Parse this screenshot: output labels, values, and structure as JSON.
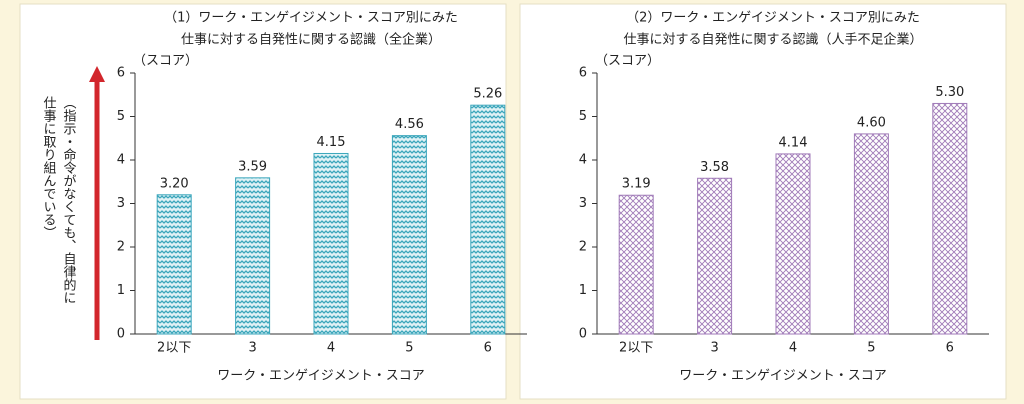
{
  "chart_data": [
    {
      "type": "bar",
      "title": [
        "（1）ワーク・エンゲイジメント・スコア別にみた",
        "仕事に対する自発性に関する認識（全企業）"
      ],
      "y_unit": "（スコア）",
      "y_axis_label": [
        "（指示・命令がなくても、自律的に",
        "仕事に取り組んでいる）"
      ],
      "x_label": "ワーク・エンゲイジメント・スコア",
      "categories": [
        "2以下",
        "3",
        "4",
        "5",
        "6"
      ],
      "values": [
        3.2,
        3.59,
        4.15,
        4.56,
        5.26
      ],
      "value_labels": [
        "3.20",
        "3.59",
        "4.15",
        "4.56",
        "5.26"
      ],
      "color": "#3aa6bb",
      "pattern": "wave",
      "ylim": [
        0,
        6
      ],
      "yticks": [
        0,
        1,
        2,
        3,
        4,
        5,
        6
      ]
    },
    {
      "type": "bar",
      "title": [
        "（2）ワーク・エンゲイジメント・スコア別にみた",
        "仕事に対する自発性に関する認識（人手不足企業）"
      ],
      "y_unit": "（スコア）",
      "x_label": "ワーク・エンゲイジメント・スコア",
      "categories": [
        "2以下",
        "3",
        "4",
        "5",
        "6"
      ],
      "values": [
        3.19,
        3.58,
        4.14,
        4.6,
        5.3
      ],
      "value_labels": [
        "3.19",
        "3.58",
        "4.14",
        "4.60",
        "5.30"
      ],
      "color": "#a07ab8",
      "pattern": "crosshatch",
      "ylim": [
        0,
        6
      ],
      "yticks": [
        0,
        1,
        2,
        3,
        4,
        5,
        6
      ]
    }
  ]
}
